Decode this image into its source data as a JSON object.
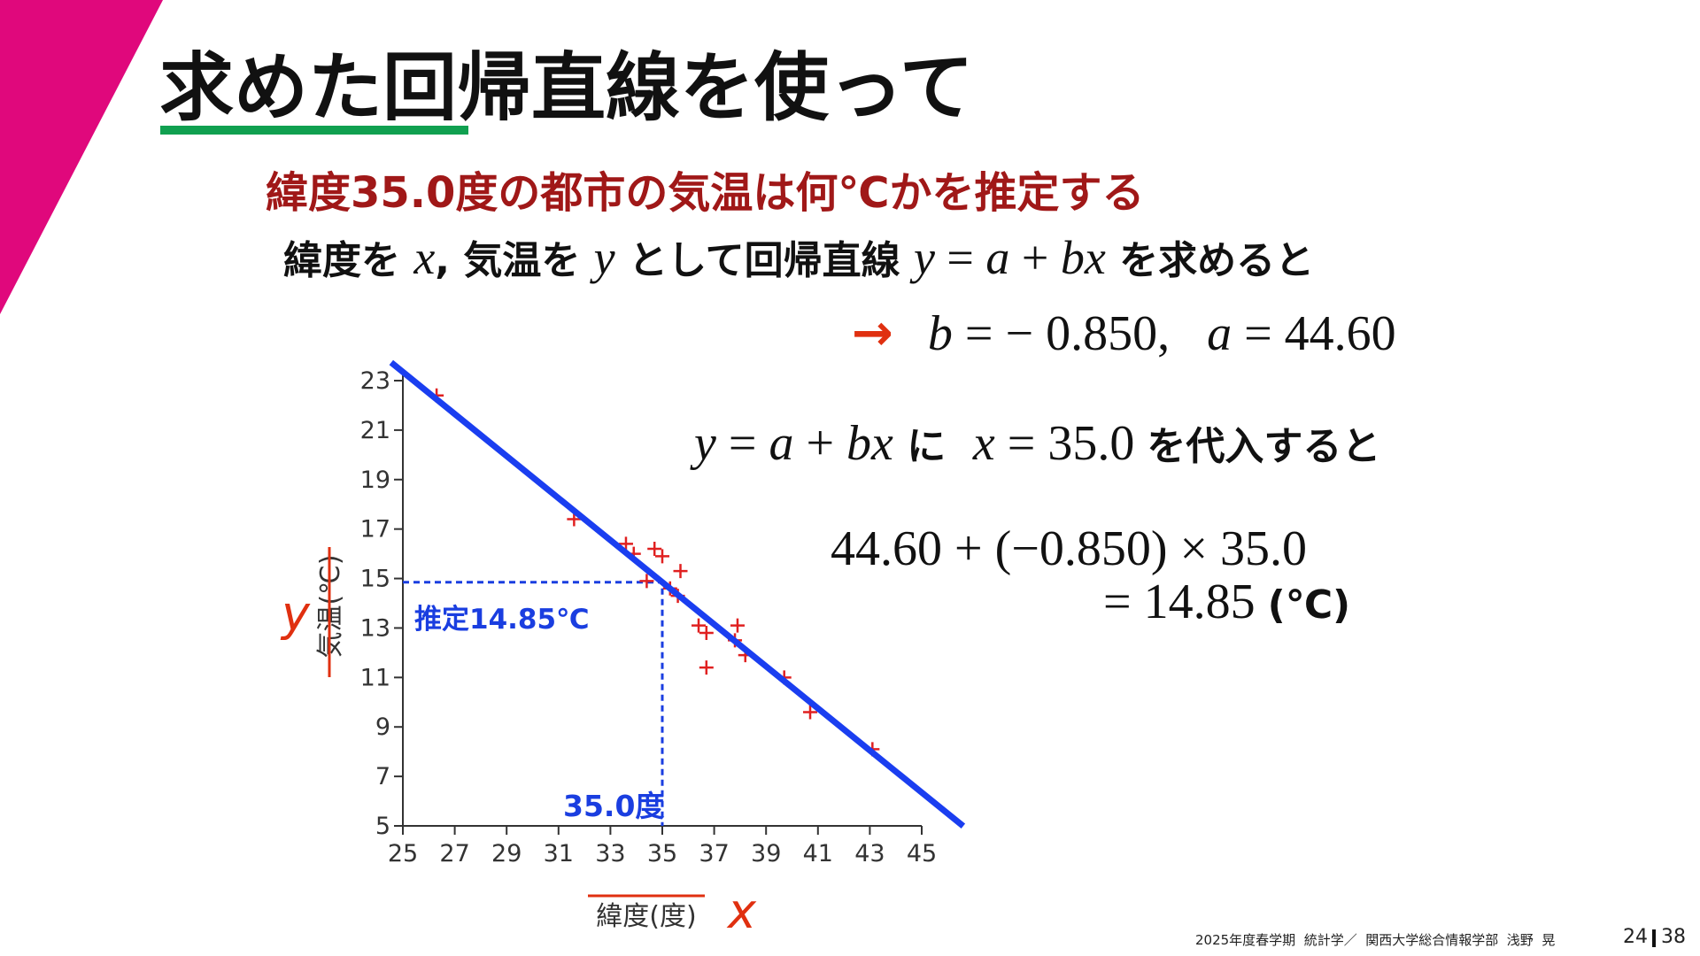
{
  "slide": {
    "title": "求めた回帰直線を使って",
    "question": "緯度35.0度の都市の気温は何℃かを推定する",
    "lines": [
      [
        {
          "text": "緯度を ",
          "style": "ja"
        },
        {
          "text": "x",
          "style": "math"
        },
        {
          "text": ", 気温を ",
          "style": "ja"
        },
        {
          "text": "y",
          "style": "math"
        },
        {
          "text": " として回帰直線 ",
          "style": "ja"
        },
        {
          "text": "y",
          "style": "math"
        },
        {
          "text": " = ",
          "style": "num"
        },
        {
          "text": "a",
          "style": "math"
        },
        {
          "text": " + ",
          "style": "num"
        },
        {
          "text": "bx",
          "style": "math"
        },
        {
          "text": " を求めると",
          "style": "ja"
        }
      ],
      [
        {
          "text": "→  ",
          "style": "arrow"
        },
        {
          "text": "b",
          "style": "math"
        },
        {
          "text": " = − 0.850,   ",
          "style": "num"
        },
        {
          "text": "a",
          "style": "math"
        },
        {
          "text": " = 44.60",
          "style": "num"
        }
      ],
      [
        {
          "text": "y",
          "style": "math"
        },
        {
          "text": " = ",
          "style": "num"
        },
        {
          "text": "a",
          "style": "math"
        },
        {
          "text": " + ",
          "style": "num"
        },
        {
          "text": "bx",
          "style": "math"
        },
        {
          "text": " に  ",
          "style": "ja"
        },
        {
          "text": "x",
          "style": "math"
        },
        {
          "text": " = 35.0 ",
          "style": "num"
        },
        {
          "text": "を代入すると",
          "style": "ja"
        }
      ],
      [
        {
          "text": "44.60 + (−0.850) × 35.0",
          "style": "num"
        }
      ],
      [
        {
          "text": "= 14.85 ",
          "style": "num"
        },
        {
          "text": "(℃)",
          "style": "ja"
        }
      ]
    ],
    "footer": "2025年度春学期  統計学／  関西大学総合情報学部  浅野  晃",
    "page": "24",
    "total": "38"
  },
  "chart_data": {
    "type": "scatter",
    "x": [
      26.3,
      31.6,
      33.6,
      33.9,
      34.7,
      35.0,
      35.7,
      34.4,
      35.3,
      35.6,
      36.4,
      36.7,
      37.9,
      37.8,
      38.2,
      36.7,
      39.7,
      40.7,
      43.1
    ],
    "values": [
      22.4,
      17.4,
      16.4,
      16.0,
      16.2,
      15.9,
      15.3,
      14.9,
      14.6,
      14.3,
      13.1,
      12.8,
      13.1,
      12.5,
      11.9,
      11.4,
      11.0,
      9.6,
      8.1
    ],
    "color": "#e02020",
    "xlim": [
      25,
      45
    ],
    "ylim": [
      5,
      23
    ],
    "xticks": [
      25,
      27,
      29,
      31,
      33,
      35,
      37,
      39,
      41,
      43,
      45
    ],
    "yticks": [
      5,
      7,
      9,
      11,
      13,
      15,
      17,
      19,
      21,
      23
    ],
    "xlabel": "緯度(度)",
    "ylabel": "気温(℃)",
    "x_symbol": "x",
    "y_symbol": "y",
    "regression": {
      "a": 44.6,
      "b": -0.85,
      "color": "#1a3ef0"
    },
    "estimate": {
      "x": 35.0,
      "y": 14.85,
      "x_label": "35.0度",
      "y_label": "推定14.85℃",
      "color": "#1a3ee0"
    }
  }
}
